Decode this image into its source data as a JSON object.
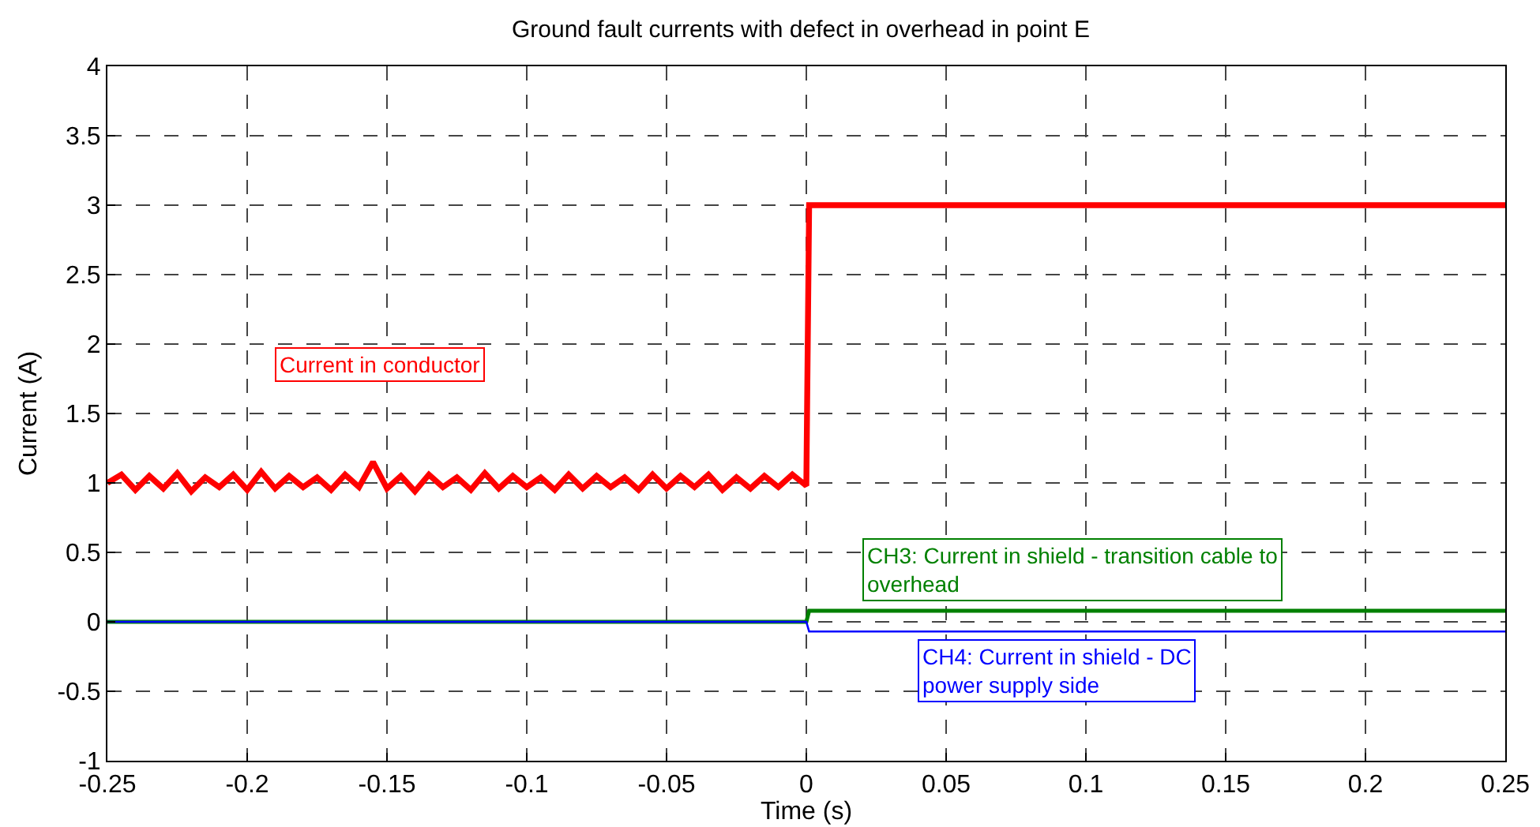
{
  "chart_data": {
    "type": "line",
    "title": "Ground fault currents with defect in overhead in point E",
    "xlabel": "Time (s)",
    "ylabel": "Current (A)",
    "xlim": [
      -0.25,
      0.25
    ],
    "xticks": [
      -0.25,
      -0.2,
      -0.15,
      -0.1,
      -0.05,
      0,
      0.05,
      0.1,
      0.15,
      0.2,
      0.25
    ],
    "ylim": [
      -1,
      4
    ],
    "yticks": [
      -1,
      -0.5,
      0,
      0.5,
      1,
      1.5,
      2,
      2.5,
      3,
      3.5,
      4
    ],
    "grid": true,
    "legend": false,
    "marker": "none",
    "line_style": "solid",
    "series": [
      {
        "name": "Current in conductor",
        "color": "#ff0000",
        "x": [
          -0.25,
          -0.245,
          -0.24,
          -0.235,
          -0.23,
          -0.225,
          -0.22,
          -0.215,
          -0.21,
          -0.205,
          -0.2,
          -0.195,
          -0.19,
          -0.185,
          -0.18,
          -0.175,
          -0.17,
          -0.165,
          -0.16,
          -0.155,
          -0.15,
          -0.145,
          -0.14,
          -0.135,
          -0.13,
          -0.125,
          -0.12,
          -0.115,
          -0.11,
          -0.105,
          -0.1,
          -0.095,
          -0.09,
          -0.085,
          -0.08,
          -0.075,
          -0.07,
          -0.065,
          -0.06,
          -0.055,
          -0.05,
          -0.045,
          -0.04,
          -0.035,
          -0.03,
          -0.025,
          -0.02,
          -0.015,
          -0.01,
          -0.005,
          0,
          0.001,
          0.25
        ],
        "values": [
          1.0,
          1.06,
          0.95,
          1.05,
          0.96,
          1.07,
          0.94,
          1.04,
          0.97,
          1.06,
          0.95,
          1.08,
          0.96,
          1.05,
          0.97,
          1.04,
          0.95,
          1.06,
          0.97,
          1.15,
          0.96,
          1.05,
          0.94,
          1.06,
          0.97,
          1.04,
          0.95,
          1.07,
          0.96,
          1.05,
          0.97,
          1.04,
          0.95,
          1.06,
          0.96,
          1.05,
          0.97,
          1.04,
          0.95,
          1.06,
          0.96,
          1.05,
          0.97,
          1.06,
          0.95,
          1.04,
          0.96,
          1.05,
          0.97,
          1.06,
          0.98,
          3.0,
          3.0
        ]
      },
      {
        "name": "CH3: Current in shield - transition cable to overhead",
        "color": "#008000",
        "x": [
          -0.25,
          0,
          0.001,
          0.25
        ],
        "values": [
          0,
          0,
          0.08,
          0.08
        ]
      },
      {
        "name": "CH4: Current in shield - DC power supply side",
        "color": "#0000ff",
        "x": [
          -0.25,
          0,
          0.001,
          0.25
        ],
        "values": [
          0,
          0,
          -0.07,
          -0.07
        ]
      }
    ]
  }
}
